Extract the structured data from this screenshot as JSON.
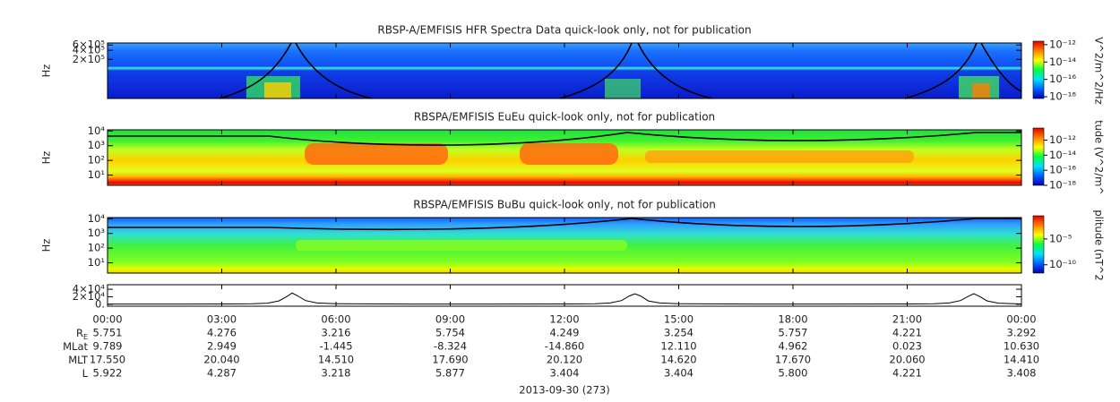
{
  "chart_data": [
    {
      "type": "spectrogram",
      "title": "RBSP-A/EMFISIS  HFR Spectra Data quick-look only, not for publication",
      "ylabel": "Hz",
      "log": true,
      "ylim": [
        10000,
        700000
      ],
      "yticks": [
        {
          "value": 600000,
          "label": "6×10⁵"
        },
        {
          "value": 400000,
          "label": "4×10⁵"
        },
        {
          "value": 200000,
          "label": "2×10⁵"
        }
      ],
      "colorbar_label": "V^2/m^2/Hz",
      "clim": [
        6.3e-19,
        2.5e-12
      ],
      "colorbar_ticks": [
        {
          "value": 1e-12,
          "label": "10⁻¹²"
        },
        {
          "value": 1e-14,
          "label": "10⁻¹⁴"
        },
        {
          "value": 1e-16,
          "label": "10⁻¹⁶"
        },
        {
          "value": 1e-18,
          "label": "10⁻¹⁸"
        }
      ],
      "colormap": [
        "#0000b0",
        "#0060ff",
        "#00e0ff",
        "#00ff40",
        "#ffff00",
        "#ff8000",
        "#e00000"
      ]
    },
    {
      "type": "spectrogram",
      "title": "RBSPA/EMFISIS  EuEu quick-look only, not for publication",
      "ylabel": "Hz",
      "log": true,
      "ylim": [
        2,
        12000
      ],
      "yticks": [
        {
          "value": 10000,
          "label": "10⁴"
        },
        {
          "value": 1000,
          "label": "10³"
        },
        {
          "value": 100,
          "label": "10²"
        },
        {
          "value": 10,
          "label": "10¹"
        }
      ],
      "colorbar_label": "tude (V^2/m^",
      "clim": [
        1e-18,
        4e-11
      ],
      "colorbar_ticks": [
        {
          "value": 1e-12,
          "label": "10⁻¹²"
        },
        {
          "value": 1e-14,
          "label": "10⁻¹⁴"
        },
        {
          "value": 1e-16,
          "label": "10⁻¹⁶"
        },
        {
          "value": 1e-18,
          "label": "10⁻¹⁸"
        }
      ],
      "colormap": [
        "#0000b0",
        "#0060ff",
        "#00e0ff",
        "#00ff40",
        "#ffff00",
        "#ff8000",
        "#e00000"
      ]
    },
    {
      "type": "spectrogram",
      "title": "RBSPA/EMFISIS  BuBu quick-look only, not for publication",
      "ylabel": "Hz",
      "log": true,
      "ylim": [
        2,
        12000
      ],
      "yticks": [
        {
          "value": 10000,
          "label": "10⁴"
        },
        {
          "value": 1000,
          "label": "10³"
        },
        {
          "value": 100,
          "label": "10²"
        },
        {
          "value": 10,
          "label": "10¹"
        }
      ],
      "colorbar_label": "plitude (nT^2",
      "clim": [
        2.5e-12,
        0.3
      ],
      "colorbar_ticks": [
        {
          "value": 1e-05,
          "label": "10⁻⁵"
        },
        {
          "value": 1e-10,
          "label": "10⁻¹⁰"
        }
      ],
      "colormap": [
        "#0000b0",
        "#0060ff",
        "#00e0ff",
        "#00ff40",
        "#ffff00",
        "#ff8000",
        "#e00000"
      ]
    },
    {
      "type": "line",
      "color": "#000000",
      "ylim": [
        -5000,
        52000
      ],
      "yticks": [
        {
          "value": 40000,
          "label": "4×10⁴"
        },
        {
          "value": 20000,
          "label": "2×10⁴"
        },
        {
          "value": 0,
          "label": "0."
        }
      ],
      "x": [
        0,
        2,
        3,
        3.8,
        4.2,
        4.5,
        4.7,
        4.85,
        5.0,
        5.2,
        5.5,
        6,
        8,
        10,
        12,
        12.8,
        13.2,
        13.5,
        13.7,
        13.85,
        14.0,
        14.2,
        14.5,
        15,
        17,
        19,
        21,
        21.7,
        22.1,
        22.4,
        22.6,
        22.75,
        22.9,
        23.1,
        23.4,
        24
      ],
      "values": [
        500,
        500,
        800,
        1500,
        3000,
        9000,
        20000,
        30000,
        22000,
        10000,
        3500,
        1500,
        500,
        500,
        800,
        1500,
        3500,
        10000,
        22000,
        28000,
        22000,
        9000,
        3500,
        1500,
        500,
        500,
        800,
        1500,
        3500,
        10000,
        21000,
        28000,
        21000,
        9000,
        3000,
        1000
      ],
      "xlim": [
        0,
        24
      ],
      "xticks": [
        {
          "value": 0,
          "label": "00:00"
        },
        {
          "value": 3,
          "label": "03:00"
        },
        {
          "value": 6,
          "label": "06:00"
        },
        {
          "value": 9,
          "label": "09:00"
        },
        {
          "value": 12,
          "label": "12:00"
        },
        {
          "value": 15,
          "label": "15:00"
        },
        {
          "value": 18,
          "label": "18:00"
        },
        {
          "value": 21,
          "label": "21:00"
        },
        {
          "value": 24,
          "label": "00:00"
        }
      ],
      "xlabel": "2013-09-30 (273)"
    }
  ],
  "ephemeris": {
    "rows": [
      {
        "label": "R",
        "sub": "E",
        "values": [
          "5.751",
          "4.276",
          "3.216",
          "5.754",
          "4.249",
          "3.254",
          "5.757",
          "4.221",
          "3.292"
        ]
      },
      {
        "label": "MLat",
        "values": [
          "9.789",
          "2.949",
          "-1.445",
          "-8.324",
          "-14.860",
          "12.110",
          "4.962",
          "0.023",
          "10.630"
        ]
      },
      {
        "label": "MLT",
        "values": [
          "17.550",
          "20.040",
          "14.510",
          "17.690",
          "20.120",
          "14.620",
          "17.670",
          "20.060",
          "14.410"
        ]
      },
      {
        "label": "L",
        "values": [
          "5.922",
          "4.287",
          "3.218",
          "5.877",
          "3.404",
          "3.404",
          "5.800",
          "4.221",
          "3.408"
        ]
      }
    ]
  }
}
